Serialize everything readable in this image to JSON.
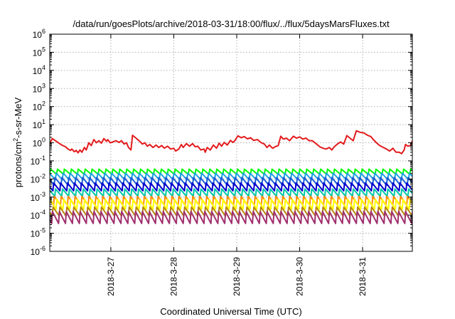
{
  "chart_data": {
    "type": "line",
    "title": "/data/run/goesPlots/archive/2018-03-31/18:00/flux/../flux/5daysMarsFluxes.txt",
    "xlabel": "Coordinated Universal Time (UTC)",
    "ylabel_parts": [
      "protons/cm",
      "2",
      "-s-sr-MeV"
    ],
    "yscale": "log",
    "ylim_exp": [
      -6,
      6
    ],
    "y_tick_labels": [
      {
        "exp": -6,
        "base": "10",
        "sup": "-6"
      },
      {
        "exp": -5,
        "base": "10",
        "sup": "-5"
      },
      {
        "exp": -4,
        "base": "10",
        "sup": "-4"
      },
      {
        "exp": -3,
        "base": "10",
        "sup": "-3"
      },
      {
        "exp": -2,
        "base": "10",
        "sup": "-2"
      },
      {
        "exp": -1,
        "base": "10",
        "sup": "-1"
      },
      {
        "exp": 0,
        "base": "10",
        "sup": "0"
      },
      {
        "exp": 1,
        "base": "10",
        "sup": "1"
      },
      {
        "exp": 2,
        "base": "10",
        "sup": "2"
      },
      {
        "exp": 3,
        "base": "10",
        "sup": "3"
      },
      {
        "exp": 4,
        "base": "10",
        "sup": "4"
      },
      {
        "exp": 5,
        "base": "10",
        "sup": "5"
      },
      {
        "exp": 6,
        "base": "10",
        "sup": "6"
      }
    ],
    "xlim_days": [
      -0.97,
      4.79
    ],
    "x_ticks": [
      {
        "day": 0,
        "label": "2018-3-27"
      },
      {
        "day": 1,
        "label": "2018-3-28"
      },
      {
        "day": 2,
        "label": "2018-3-29"
      },
      {
        "day": 3,
        "label": "2018-3-30"
      },
      {
        "day": 4,
        "label": "2018-3-31"
      }
    ],
    "grid": true,
    "series": [
      {
        "color": "#e41a1c",
        "mode": "points",
        "points": [
          [
            -0.97,
            0.9
          ],
          [
            -0.93,
            1.7
          ],
          [
            -0.85,
            1.1
          ],
          [
            -0.78,
            0.75
          ],
          [
            -0.72,
            0.6
          ],
          [
            -0.68,
            0.45
          ],
          [
            -0.64,
            0.38
          ],
          [
            -0.62,
            0.45
          ],
          [
            -0.58,
            0.32
          ],
          [
            -0.55,
            0.38
          ],
          [
            -0.52,
            0.28
          ],
          [
            -0.49,
            0.4
          ],
          [
            -0.46,
            0.3
          ],
          [
            -0.42,
            0.55
          ],
          [
            -0.39,
            0.4
          ],
          [
            -0.35,
            1.0
          ],
          [
            -0.31,
            0.7
          ],
          [
            -0.27,
            1.5
          ],
          [
            -0.23,
            1.0
          ],
          [
            -0.19,
            1.3
          ],
          [
            -0.15,
            0.95
          ],
          [
            -0.11,
            1.7
          ],
          [
            -0.07,
            1.2
          ],
          [
            -0.05,
            1.5
          ],
          [
            -0.01,
            1.0
          ],
          [
            0.03,
            1.1
          ],
          [
            0.08,
            1.3
          ],
          [
            0.13,
            1.05
          ],
          [
            0.17,
            1.3
          ],
          [
            0.21,
            0.85
          ],
          [
            0.25,
            1.0
          ],
          [
            0.28,
            0.55
          ],
          [
            0.32,
            0.4
          ],
          [
            0.345,
            2.6
          ],
          [
            0.4,
            1.8
          ],
          [
            0.46,
            1.2
          ],
          [
            0.5,
            0.85
          ],
          [
            0.54,
            1.0
          ],
          [
            0.58,
            0.65
          ],
          [
            0.62,
            0.8
          ],
          [
            0.67,
            0.55
          ],
          [
            0.72,
            0.75
          ],
          [
            0.76,
            0.55
          ],
          [
            0.81,
            0.7
          ],
          [
            0.85,
            0.5
          ],
          [
            0.9,
            0.65
          ],
          [
            0.95,
            0.45
          ],
          [
            1.0,
            0.5
          ],
          [
            1.03,
            0.35
          ],
          [
            1.08,
            0.45
          ],
          [
            1.12,
            0.8
          ],
          [
            1.15,
            0.55
          ],
          [
            1.2,
            0.9
          ],
          [
            1.25,
            0.65
          ],
          [
            1.3,
            0.9
          ],
          [
            1.34,
            0.6
          ],
          [
            1.38,
            0.65
          ],
          [
            1.43,
            0.4
          ],
          [
            1.48,
            0.45
          ],
          [
            1.5,
            0.3
          ],
          [
            1.53,
            0.55
          ],
          [
            1.58,
            0.4
          ],
          [
            1.63,
            0.75
          ],
          [
            1.68,
            0.5
          ],
          [
            1.72,
            0.95
          ],
          [
            1.76,
            0.65
          ],
          [
            1.8,
            1.05
          ],
          [
            1.85,
            0.75
          ],
          [
            1.9,
            1.35
          ],
          [
            1.94,
            1.05
          ],
          [
            1.97,
            1.3
          ],
          [
            2.02,
            2.4
          ],
          [
            2.07,
            1.9
          ],
          [
            2.12,
            2.2
          ],
          [
            2.17,
            1.65
          ],
          [
            2.22,
            1.9
          ],
          [
            2.27,
            1.35
          ],
          [
            2.33,
            1.5
          ],
          [
            2.39,
            1.0
          ],
          [
            2.44,
            0.85
          ],
          [
            2.48,
            0.55
          ],
          [
            2.52,
            0.75
          ],
          [
            2.57,
            0.5
          ],
          [
            2.61,
            0.6
          ],
          [
            2.66,
            0.7
          ],
          [
            2.7,
            2.3
          ],
          [
            2.74,
            1.6
          ],
          [
            2.79,
            1.8
          ],
          [
            2.84,
            1.3
          ],
          [
            2.9,
            2.3
          ],
          [
            2.95,
            1.8
          ],
          [
            3.0,
            2.1
          ],
          [
            3.05,
            1.6
          ],
          [
            3.1,
            1.8
          ],
          [
            3.15,
            1.3
          ],
          [
            3.2,
            1.3
          ],
          [
            3.26,
            0.9
          ],
          [
            3.32,
            0.6
          ],
          [
            3.37,
            0.5
          ],
          [
            3.42,
            0.45
          ],
          [
            3.47,
            0.55
          ],
          [
            3.51,
            0.4
          ],
          [
            3.55,
            0.6
          ],
          [
            3.6,
            0.85
          ],
          [
            3.65,
            1.1
          ],
          [
            3.7,
            0.85
          ],
          [
            3.75,
            2.5
          ],
          [
            3.8,
            1.8
          ],
          [
            3.85,
            1.3
          ],
          [
            3.9,
            4.6
          ],
          [
            3.96,
            3.8
          ],
          [
            4.02,
            3.5
          ],
          [
            4.08,
            2.6
          ],
          [
            4.13,
            2.2
          ],
          [
            4.17,
            1.5
          ],
          [
            4.22,
            1.0
          ],
          [
            4.27,
            0.7
          ],
          [
            4.33,
            0.55
          ],
          [
            4.38,
            0.45
          ],
          [
            4.43,
            0.35
          ],
          [
            4.48,
            0.5
          ],
          [
            4.53,
            0.3
          ],
          [
            4.58,
            0.3
          ],
          [
            4.62,
            0.25
          ],
          [
            4.66,
            0.4
          ],
          [
            4.68,
            0.8
          ],
          [
            4.72,
            0.65
          ],
          [
            4.76,
            0.7
          ],
          [
            4.79,
            1.3
          ]
        ]
      },
      {
        "color": "#00ff00",
        "mode": "sawtooth",
        "start": -0.97,
        "end": 4.79,
        "period": 0.11,
        "peak": 0.035,
        "trough": 0.018,
        "offset": 0.0
      },
      {
        "color": "#1fa4e0",
        "mode": "sawtooth",
        "start": -0.97,
        "end": 4.79,
        "period": 0.11,
        "peak": 0.021,
        "trough": 0.009,
        "offset": 0.02
      },
      {
        "color": "#1f5fd6",
        "mode": "sawtooth",
        "start": -0.97,
        "end": 4.79,
        "period": 0.11,
        "peak": 0.012,
        "trough": 0.0045,
        "offset": 0.04
      },
      {
        "color": "#0000cc",
        "mode": "sawtooth",
        "start": -0.97,
        "end": 4.79,
        "period": 0.11,
        "peak": 0.006,
        "trough": 0.0022,
        "offset": 0.06
      },
      {
        "color": "#00c9a7",
        "mode": "sawtooth",
        "start": -0.97,
        "end": 4.79,
        "period": 0.11,
        "peak": 0.0028,
        "trough": 0.0011,
        "offset": 0.03
      },
      {
        "color": "#ff8c00",
        "mode": "sawtooth",
        "start": -0.97,
        "end": 4.79,
        "period": 0.11,
        "peak": 0.0011,
        "trough": 0.00035,
        "offset": 0.05
      },
      {
        "color": "#ffff00",
        "mode": "sawtooth",
        "start": -0.97,
        "end": 4.79,
        "period": 0.11,
        "peak": 0.00075,
        "trough": 0.00022,
        "offset": 0.01
      },
      {
        "color": "#b8860b",
        "mode": "sawtooth",
        "start": -0.97,
        "end": 4.79,
        "period": 0.11,
        "peak": 0.00028,
        "trough": 9e-05,
        "offset": 0.07
      },
      {
        "color": "#a0306e",
        "mode": "sawtooth",
        "start": -0.97,
        "end": 4.79,
        "period": 0.11,
        "peak": 0.00016,
        "trough": 3.5e-05,
        "offset": 0.08
      }
    ]
  }
}
